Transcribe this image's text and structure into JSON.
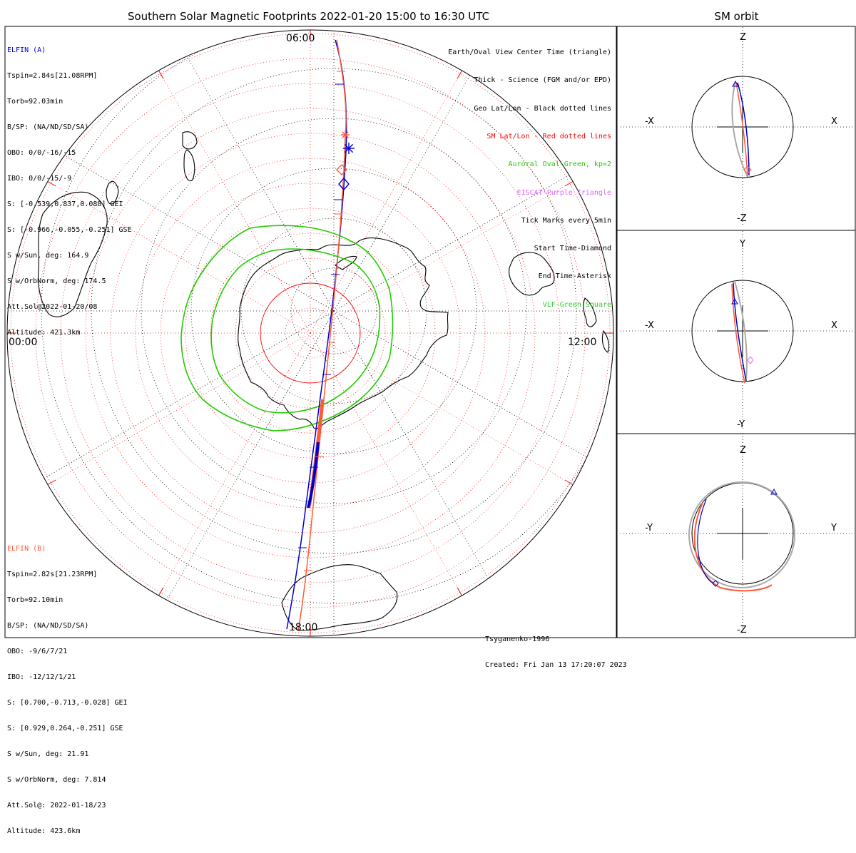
{
  "title": "Southern Solar Magnetic Footprints 2022-01-20 15:00 to 16:30 UTC",
  "side_title": "SM orbit",
  "polar_labels": {
    "top": "06:00",
    "right": "12:00",
    "bottom": "18:00",
    "left": "00:00"
  },
  "colors": {
    "elfin_a": "#0000cc",
    "elfin_b": "#ff5a36",
    "oval": "#22cc00",
    "sm_grid": "#ff0000",
    "geo_grid": "#000000",
    "eiscat": "#dd66ff",
    "vlf": "#33cc33",
    "orbit_grey": "#aaaaaa"
  },
  "elfin_a": {
    "name": "ELFIN (A)",
    "lines": [
      "Tspin=2.84s[21.08RPM]",
      "Torb=92.03min",
      "B/SP: (NA/ND/SD/SA)",
      "OBO: 0/0/-16/-15",
      "IBO: 0/0/-15/-9",
      "S: [-0.539,0.837,0.088] GEI",
      "S: [-0.966,-0.055,-0.251] GSE",
      "S w/Sun, deg: 164.9",
      "S w/OrbNorm, deg: 174.5",
      "Att.Sol@2022-01-20/08",
      "Altitude: 421.3km"
    ]
  },
  "elfin_b": {
    "name": "ELFIN (B)",
    "lines": [
      "Tspin=2.82s[21.23RPM]",
      "Torb=92.10min",
      "B/SP: (NA/ND/SD/SA)",
      "OBO: -9/6/7/21",
      "IBO: -12/12/1/21",
      "S: [0.700,-0.713,-0.028] GEI",
      "S: [0.929,0.264,-0.251] GSE",
      "S w/Sun, deg: 21.91",
      "S w/OrbNorm, deg: 7.814",
      "Att.Sol@: 2022-01-18/23",
      "Altitude: 423.6km"
    ]
  },
  "legend": [
    {
      "text": "Earth/Oval View Center Time (triangle)",
      "color": "#000000"
    },
    {
      "text": "Thick - Science (FGM and/or EPD)",
      "color": "#000000"
    },
    {
      "text": "Geo Lat/Lon - Black dotted lines",
      "color": "#000000"
    },
    {
      "text": "SM Lat/Lon - Red dotted lines",
      "color": "#ff0000"
    },
    {
      "text": "Auroral Oval-Green, kp=2",
      "color": "#22cc00"
    },
    {
      "text": "EISCAT-Purple Triangle",
      "color": "#dd66ff"
    },
    {
      "text": "Tick Marks every 5min",
      "color": "#000000"
    },
    {
      "text": "Start Time-Diamond",
      "color": "#000000"
    },
    {
      "text": "End Time-Asterisk",
      "color": "#000000"
    },
    {
      "text": "VLF-Green Square",
      "color": "#33cc33"
    }
  ],
  "credit": {
    "model": "Tsyganenko-1996",
    "created": "Created: Fri Jan 13 17:20:07 2023"
  },
  "orbit_panels": [
    {
      "top": "Z",
      "bottom": "-Z",
      "left": "-X",
      "right": "X"
    },
    {
      "top": "Y",
      "bottom": "-Y",
      "left": "-X",
      "right": "X"
    },
    {
      "top": "Z",
      "bottom": "-Z",
      "left": "-Y",
      "right": "Y"
    }
  ]
}
